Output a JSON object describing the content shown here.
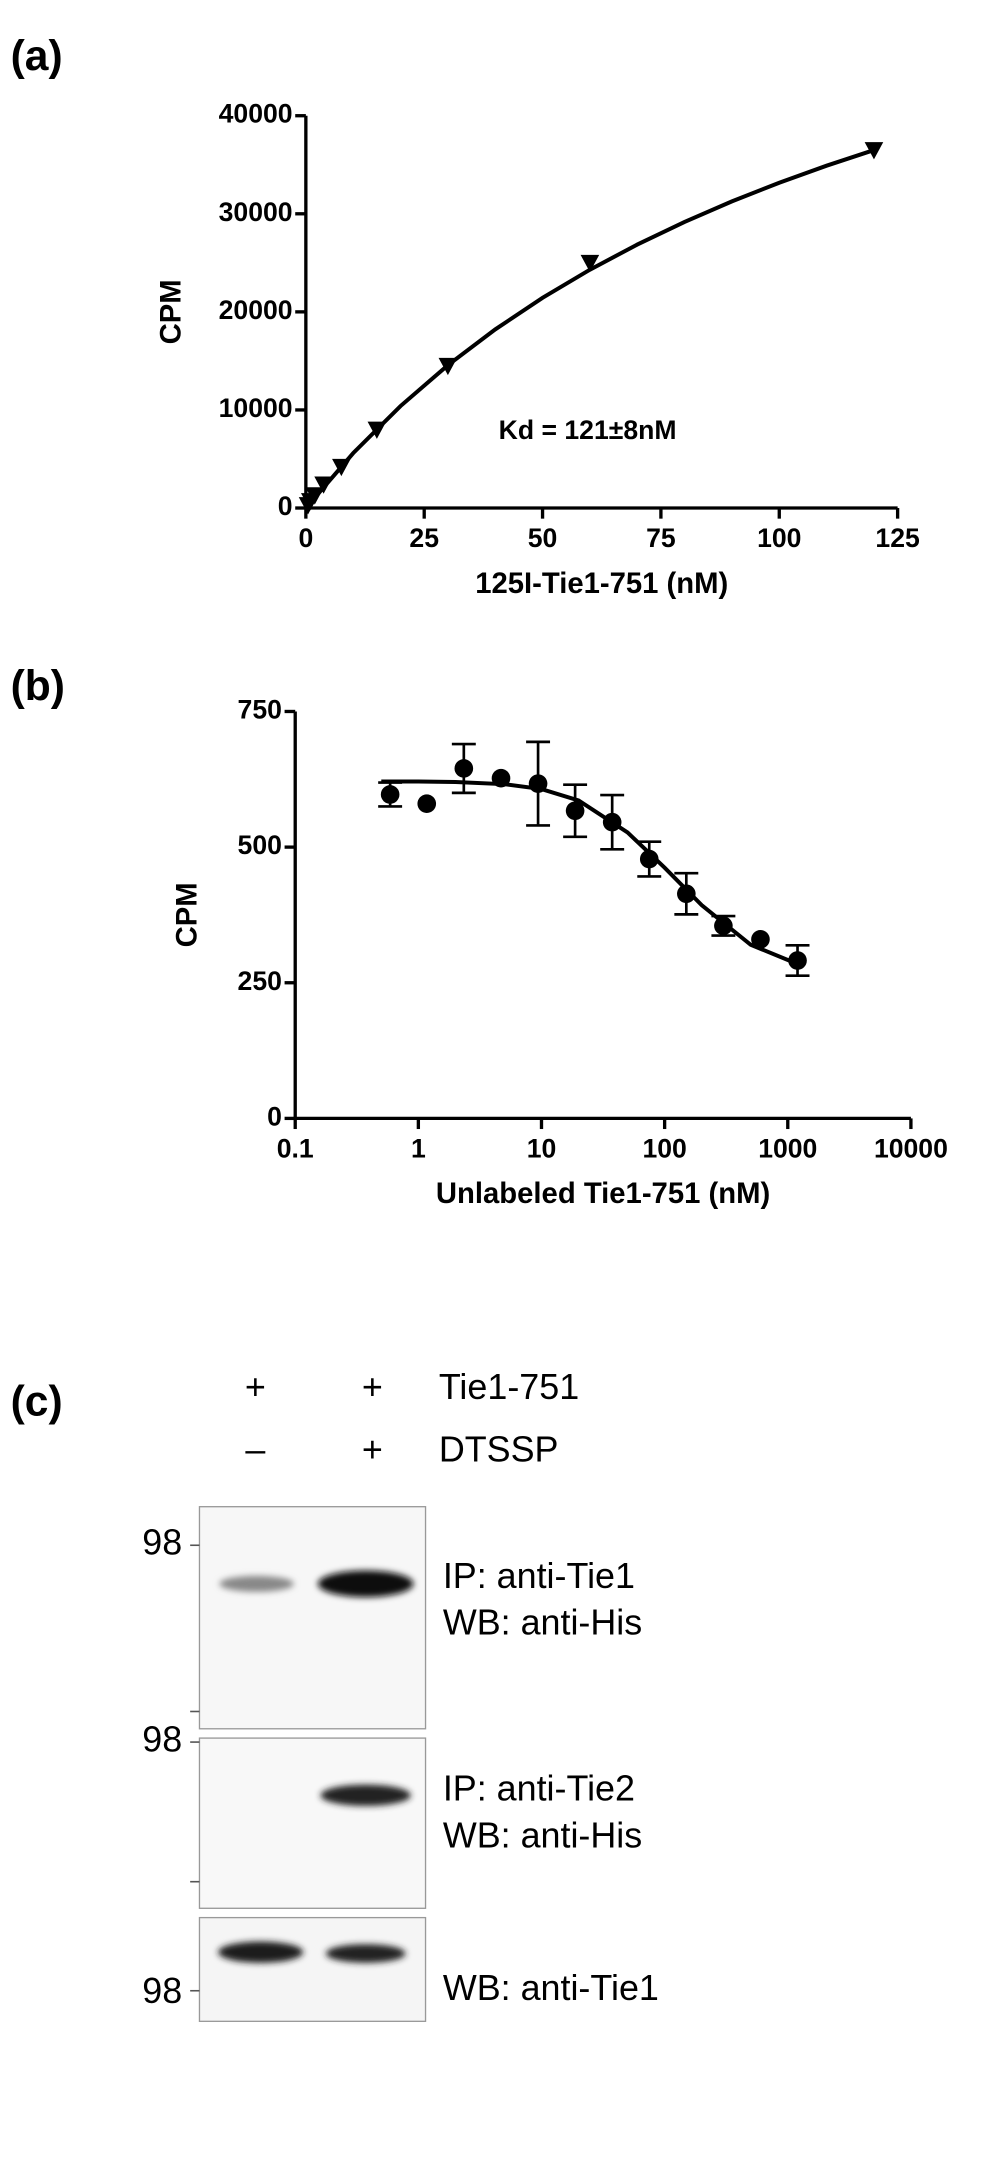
{
  "chart_data": [
    {
      "type": "scatter",
      "panel": "(a)",
      "xlabel": "125I-Tie1-751 (nM)",
      "ylabel": "CPM",
      "annotation": "Kd = 121±8nM",
      "xlim": [
        0,
        125
      ],
      "xticks": [
        0,
        25,
        50,
        75,
        100,
        125
      ],
      "ylim": [
        0,
        40000
      ],
      "yticks": [
        0,
        10000,
        20000,
        30000,
        40000
      ],
      "series": [
        {
          "marker": "triangle-down",
          "color": "#000000",
          "x": [
            0.47,
            0.94,
            1.88,
            3.75,
            7.5,
            15,
            30,
            60,
            120
          ],
          "values": [
            300,
            700,
            1300,
            2400,
            4200,
            8000,
            14500,
            25000,
            36500
          ]
        },
        {
          "marker": "line",
          "color": "#000000",
          "x": [
            0,
            10,
            20,
            30,
            40,
            50,
            60,
            70,
            80,
            90,
            100,
            110,
            120
          ],
          "values": [
            0,
            5595,
            10397,
            14563,
            18211,
            21433,
            24298,
            26864,
            29174,
            31265,
            33167,
            34905,
            36498
          ]
        }
      ]
    },
    {
      "type": "scatter",
      "panel": "(b)",
      "xlabel": "Unlabeled Tie1-751 (nM)",
      "ylabel": "CPM",
      "xscale": "log",
      "xlim": [
        0.1,
        10000
      ],
      "xticks": [
        0.1,
        1,
        10,
        100,
        1000,
        10000
      ],
      "ylim": [
        0,
        750
      ],
      "yticks": [
        0,
        250,
        500,
        750
      ],
      "series": [
        {
          "marker": "circle",
          "color": "#000000",
          "x": [
            0.59,
            1.17,
            2.34,
            4.69,
            9.38,
            18.75,
            37.5,
            75,
            150,
            300,
            600,
            1200
          ],
          "values": [
            597,
            580,
            645,
            627,
            617,
            567,
            546,
            478,
            414,
            355,
            330,
            291
          ],
          "errors": [
            22,
            0,
            45,
            0,
            77,
            48,
            50,
            32,
            38,
            18,
            0,
            28
          ]
        },
        {
          "marker": "line",
          "color": "#000000",
          "x": [
            0.5,
            1,
            2,
            5,
            10,
            20,
            50,
            100,
            200,
            500,
            1250
          ],
          "values": [
            621,
            621,
            620,
            616,
            607,
            586,
            527,
            462,
            393,
            320,
            283
          ]
        }
      ]
    }
  ],
  "blot": {
    "panel": "(c)",
    "lane1_row1": "+",
    "lane2_row1": "+",
    "row1": "Tie1-751",
    "lane1_row2": "–",
    "lane2_row2": "+",
    "row2": "DTSSP",
    "marker1": "98",
    "marker2": "98",
    "marker3": "98",
    "label1a": "IP: anti-Tie1",
    "label1b": "WB: anti-His",
    "label2a": "IP: anti-Tie2",
    "label2b": "WB: anti-His",
    "label3": "WB: anti-Tie1"
  }
}
